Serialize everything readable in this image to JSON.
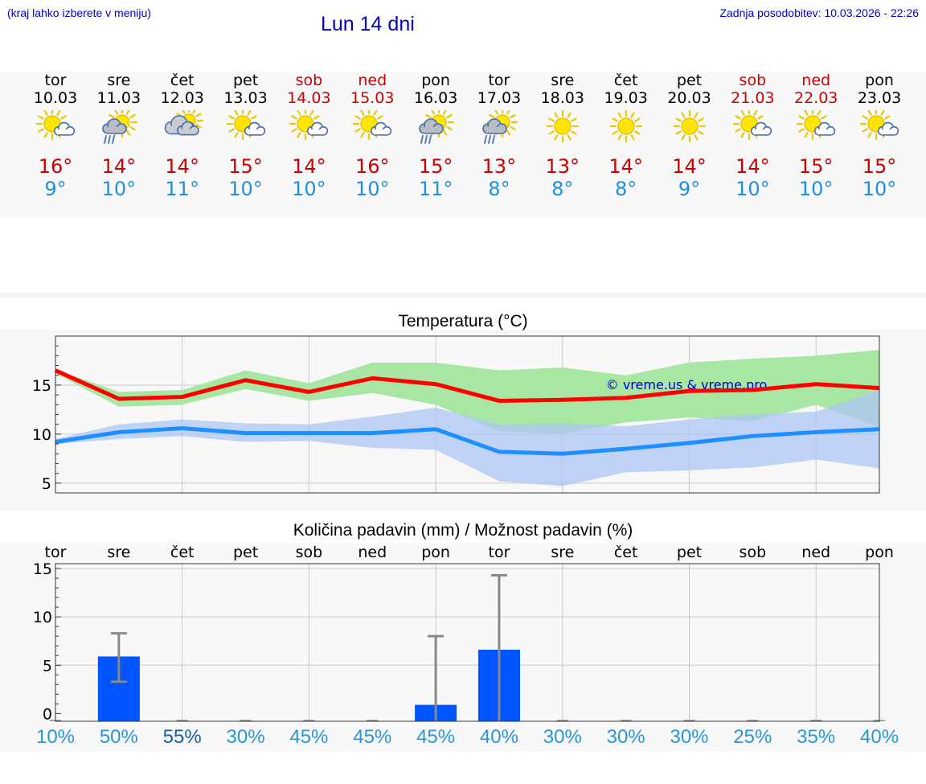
{
  "header": {
    "hint": "(kraj lahko izberete v meniju)",
    "title": "Lun 14 dni",
    "updated": "Zadnja posodobitev: 10.03.2026 - 22:26"
  },
  "colors": {
    "max_temp": "#cc0000",
    "min_temp": "#1e8fe0",
    "max_band": "#a8e6a4",
    "min_band": "#aec6f4",
    "max_line": "#ff0000",
    "min_line": "#1e8fff",
    "precip_bar": "#0055ff",
    "prob_text": "#2a95d8"
  },
  "days": [
    {
      "name": "tor",
      "date": "10.03",
      "weekend": false,
      "icon": "sun-cloud-icon",
      "max": "16°",
      "min": "9°"
    },
    {
      "name": "sre",
      "date": "11.03",
      "weekend": false,
      "icon": "sun-cloud-rain-icon",
      "max": "14°",
      "min": "10°"
    },
    {
      "name": "čet",
      "date": "12.03",
      "weekend": false,
      "icon": "sun-overcast-icon",
      "max": "14°",
      "min": "11°"
    },
    {
      "name": "pet",
      "date": "13.03",
      "weekend": false,
      "icon": "sun-cloud-icon",
      "max": "15°",
      "min": "10°"
    },
    {
      "name": "sob",
      "date": "14.03",
      "weekend": true,
      "icon": "sun-cloud-icon",
      "max": "14°",
      "min": "10°"
    },
    {
      "name": "ned",
      "date": "15.03",
      "weekend": true,
      "icon": "sun-cloud-icon",
      "max": "16°",
      "min": "10°"
    },
    {
      "name": "pon",
      "date": "16.03",
      "weekend": false,
      "icon": "sun-cloud-rain-icon",
      "max": "15°",
      "min": "11°"
    },
    {
      "name": "tor",
      "date": "17.03",
      "weekend": false,
      "icon": "sun-cloud-rain-icon",
      "max": "13°",
      "min": "8°"
    },
    {
      "name": "sre",
      "date": "18.03",
      "weekend": false,
      "icon": "sun-icon",
      "max": "13°",
      "min": "8°"
    },
    {
      "name": "čet",
      "date": "19.03",
      "weekend": false,
      "icon": "sun-icon",
      "max": "14°",
      "min": "8°"
    },
    {
      "name": "pet",
      "date": "20.03",
      "weekend": false,
      "icon": "sun-icon",
      "max": "14°",
      "min": "9°"
    },
    {
      "name": "sob",
      "date": "21.03",
      "weekend": true,
      "icon": "sun-cloud-icon",
      "max": "14°",
      "min": "10°"
    },
    {
      "name": "ned",
      "date": "22.03",
      "weekend": true,
      "icon": "sun-cloud-icon",
      "max": "15°",
      "min": "10°"
    },
    {
      "name": "pon",
      "date": "23.03",
      "weekend": false,
      "icon": "sun-cloud-icon",
      "max": "15°",
      "min": "10°"
    }
  ],
  "chart_data": [
    {
      "type": "line",
      "title": "Temperatura (°C)",
      "watermark": "© vreme.us & vreme.pro",
      "ylim": [
        4,
        20
      ],
      "yticks": [
        5,
        10,
        15
      ],
      "x_days": 13.0,
      "series": [
        {
          "name": "max",
          "x": [
            0,
            1,
            2,
            3,
            4,
            5,
            6,
            7,
            8,
            9,
            10,
            11,
            12,
            13
          ],
          "values": [
            16.5,
            13.6,
            13.8,
            15.5,
            14.3,
            15.7,
            15.1,
            13.4,
            13.5,
            13.7,
            14.4,
            14.5,
            15.1,
            14.7
          ],
          "band_high": [
            16.6,
            14.3,
            14.5,
            16.5,
            15.2,
            17.3,
            17.3,
            16.5,
            16.8,
            16.0,
            17.3,
            17.7,
            18.0,
            18.6
          ],
          "band_low": [
            16.2,
            12.8,
            13.0,
            14.6,
            13.4,
            14.2,
            13.0,
            10.3,
            10.0,
            11.2,
            11.7,
            11.3,
            13.0,
            10.7
          ]
        },
        {
          "name": "min",
          "x": [
            0,
            1,
            2,
            3,
            4,
            5,
            6,
            7,
            8,
            9,
            10,
            11,
            12,
            13
          ],
          "values": [
            9.2,
            10.2,
            10.6,
            10.1,
            10.1,
            10.1,
            10.5,
            8.2,
            8.0,
            8.5,
            9.1,
            9.8,
            10.2,
            10.5
          ],
          "band_high": [
            9.5,
            11.0,
            11.5,
            11.1,
            11.0,
            11.8,
            12.7,
            11.0,
            11.1,
            10.8,
            11.5,
            12.0,
            12.3,
            14.5
          ],
          "band_low": [
            9.0,
            9.5,
            9.8,
            9.2,
            9.3,
            8.6,
            8.4,
            5.2,
            4.7,
            6.1,
            6.3,
            6.6,
            7.4,
            6.5
          ]
        }
      ]
    },
    {
      "type": "bar",
      "title": "Količina padavin (mm) / Možnost padavin (%)",
      "categories": [
        "tor",
        "sre",
        "čet",
        "pet",
        "sob",
        "ned",
        "pon",
        "tor",
        "sre",
        "čet",
        "pet",
        "sob",
        "ned",
        "pon"
      ],
      "ylim": [
        -0.8,
        15.5
      ],
      "yticks": [
        0,
        5,
        10,
        15
      ],
      "values": [
        0,
        5.9,
        0,
        0,
        0,
        0,
        0.9,
        6.6,
        0,
        0,
        0,
        0,
        0,
        0
      ],
      "err_low": [
        0,
        3.3,
        0,
        0,
        0,
        0,
        0,
        0,
        0,
        0,
        0,
        0,
        0,
        0
      ],
      "err_high": [
        0,
        8.3,
        0,
        0,
        0,
        0,
        8.0,
        14.3,
        0,
        0,
        0,
        0,
        0,
        0
      ],
      "probabilities": [
        "10%",
        "50%",
        "55%",
        "30%",
        "45%",
        "45%",
        "45%",
        "40%",
        "30%",
        "30%",
        "30%",
        "25%",
        "35%",
        "40%"
      ]
    }
  ]
}
